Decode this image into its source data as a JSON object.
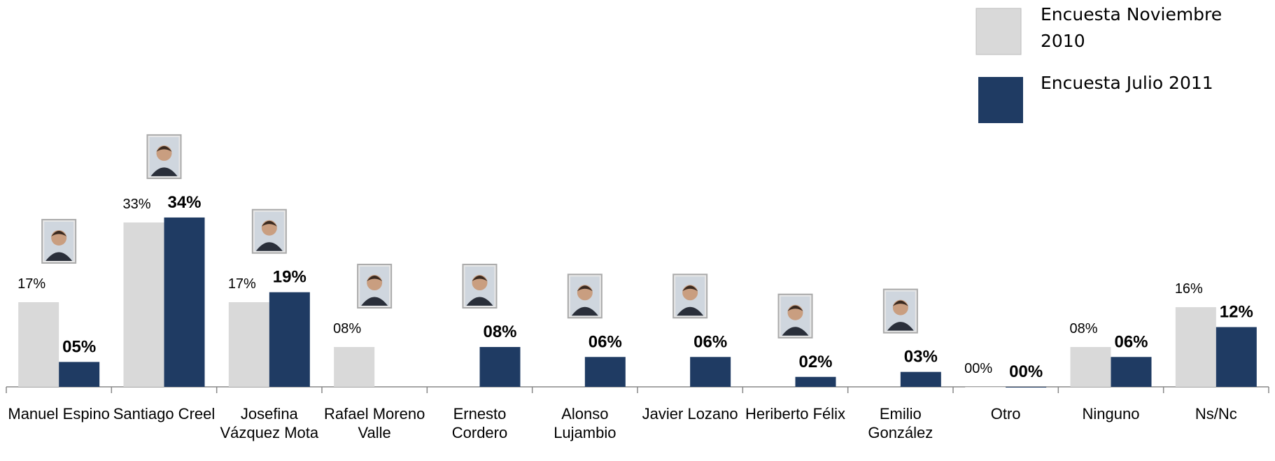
{
  "chart_data": {
    "type": "bar",
    "categories": [
      "Manuel Espino",
      "Santiago Creel",
      "Josefina Vázquez Mota",
      "Rafael Moreno Valle",
      "Ernesto Cordero",
      "Alonso Lujambio",
      "Javier Lozano",
      "Heriberto Félix",
      "Emilio González",
      "Otro",
      "Ninguno",
      "Ns/Nc"
    ],
    "series": [
      {
        "name": "Encuesta Noviembre 2010",
        "color": "#d9d9d9",
        "values": [
          17,
          33,
          17,
          8,
          null,
          null,
          null,
          null,
          null,
          0,
          8,
          16
        ],
        "value_labels": [
          "17%",
          "33%",
          "17%",
          "08%",
          null,
          null,
          null,
          null,
          null,
          "00%",
          "08%",
          "16%"
        ]
      },
      {
        "name": "Encuesta Julio 2011",
        "color": "#1f3b63",
        "values": [
          5,
          34,
          19,
          null,
          8,
          6,
          6,
          2,
          3,
          0,
          6,
          12
        ],
        "value_labels": [
          "05%",
          "34%",
          "19%",
          null,
          "08%",
          "06%",
          "06%",
          "02%",
          "03%",
          "00%",
          "06%",
          "12%"
        ]
      }
    ],
    "ylim": [
      0,
      50
    ],
    "legend": "top-right"
  }
}
